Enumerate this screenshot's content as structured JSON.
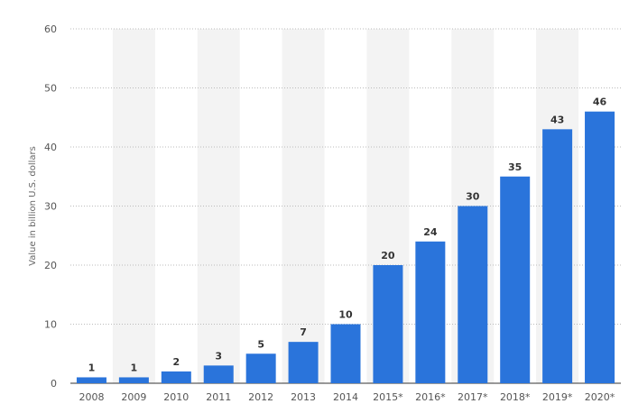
{
  "chart_data": {
    "type": "bar",
    "categories": [
      "2008",
      "2009",
      "2010",
      "2011",
      "2012",
      "2013",
      "2014",
      "2015*",
      "2016*",
      "2017*",
      "2018*",
      "2019*",
      "2020*"
    ],
    "values": [
      1,
      1,
      2,
      3,
      5,
      7,
      10,
      20,
      24,
      30,
      35,
      43,
      46
    ],
    "ylabel": "Value in billion U.S. dollars",
    "xlabel": "",
    "ylim": [
      0,
      60
    ],
    "yticks": [
      0,
      10,
      20,
      30,
      40,
      50,
      60
    ],
    "grid": true,
    "colors": {
      "bar": "#2a74db",
      "alt_band": "#f3f3f3",
      "grid": "#bbbbbb"
    }
  }
}
